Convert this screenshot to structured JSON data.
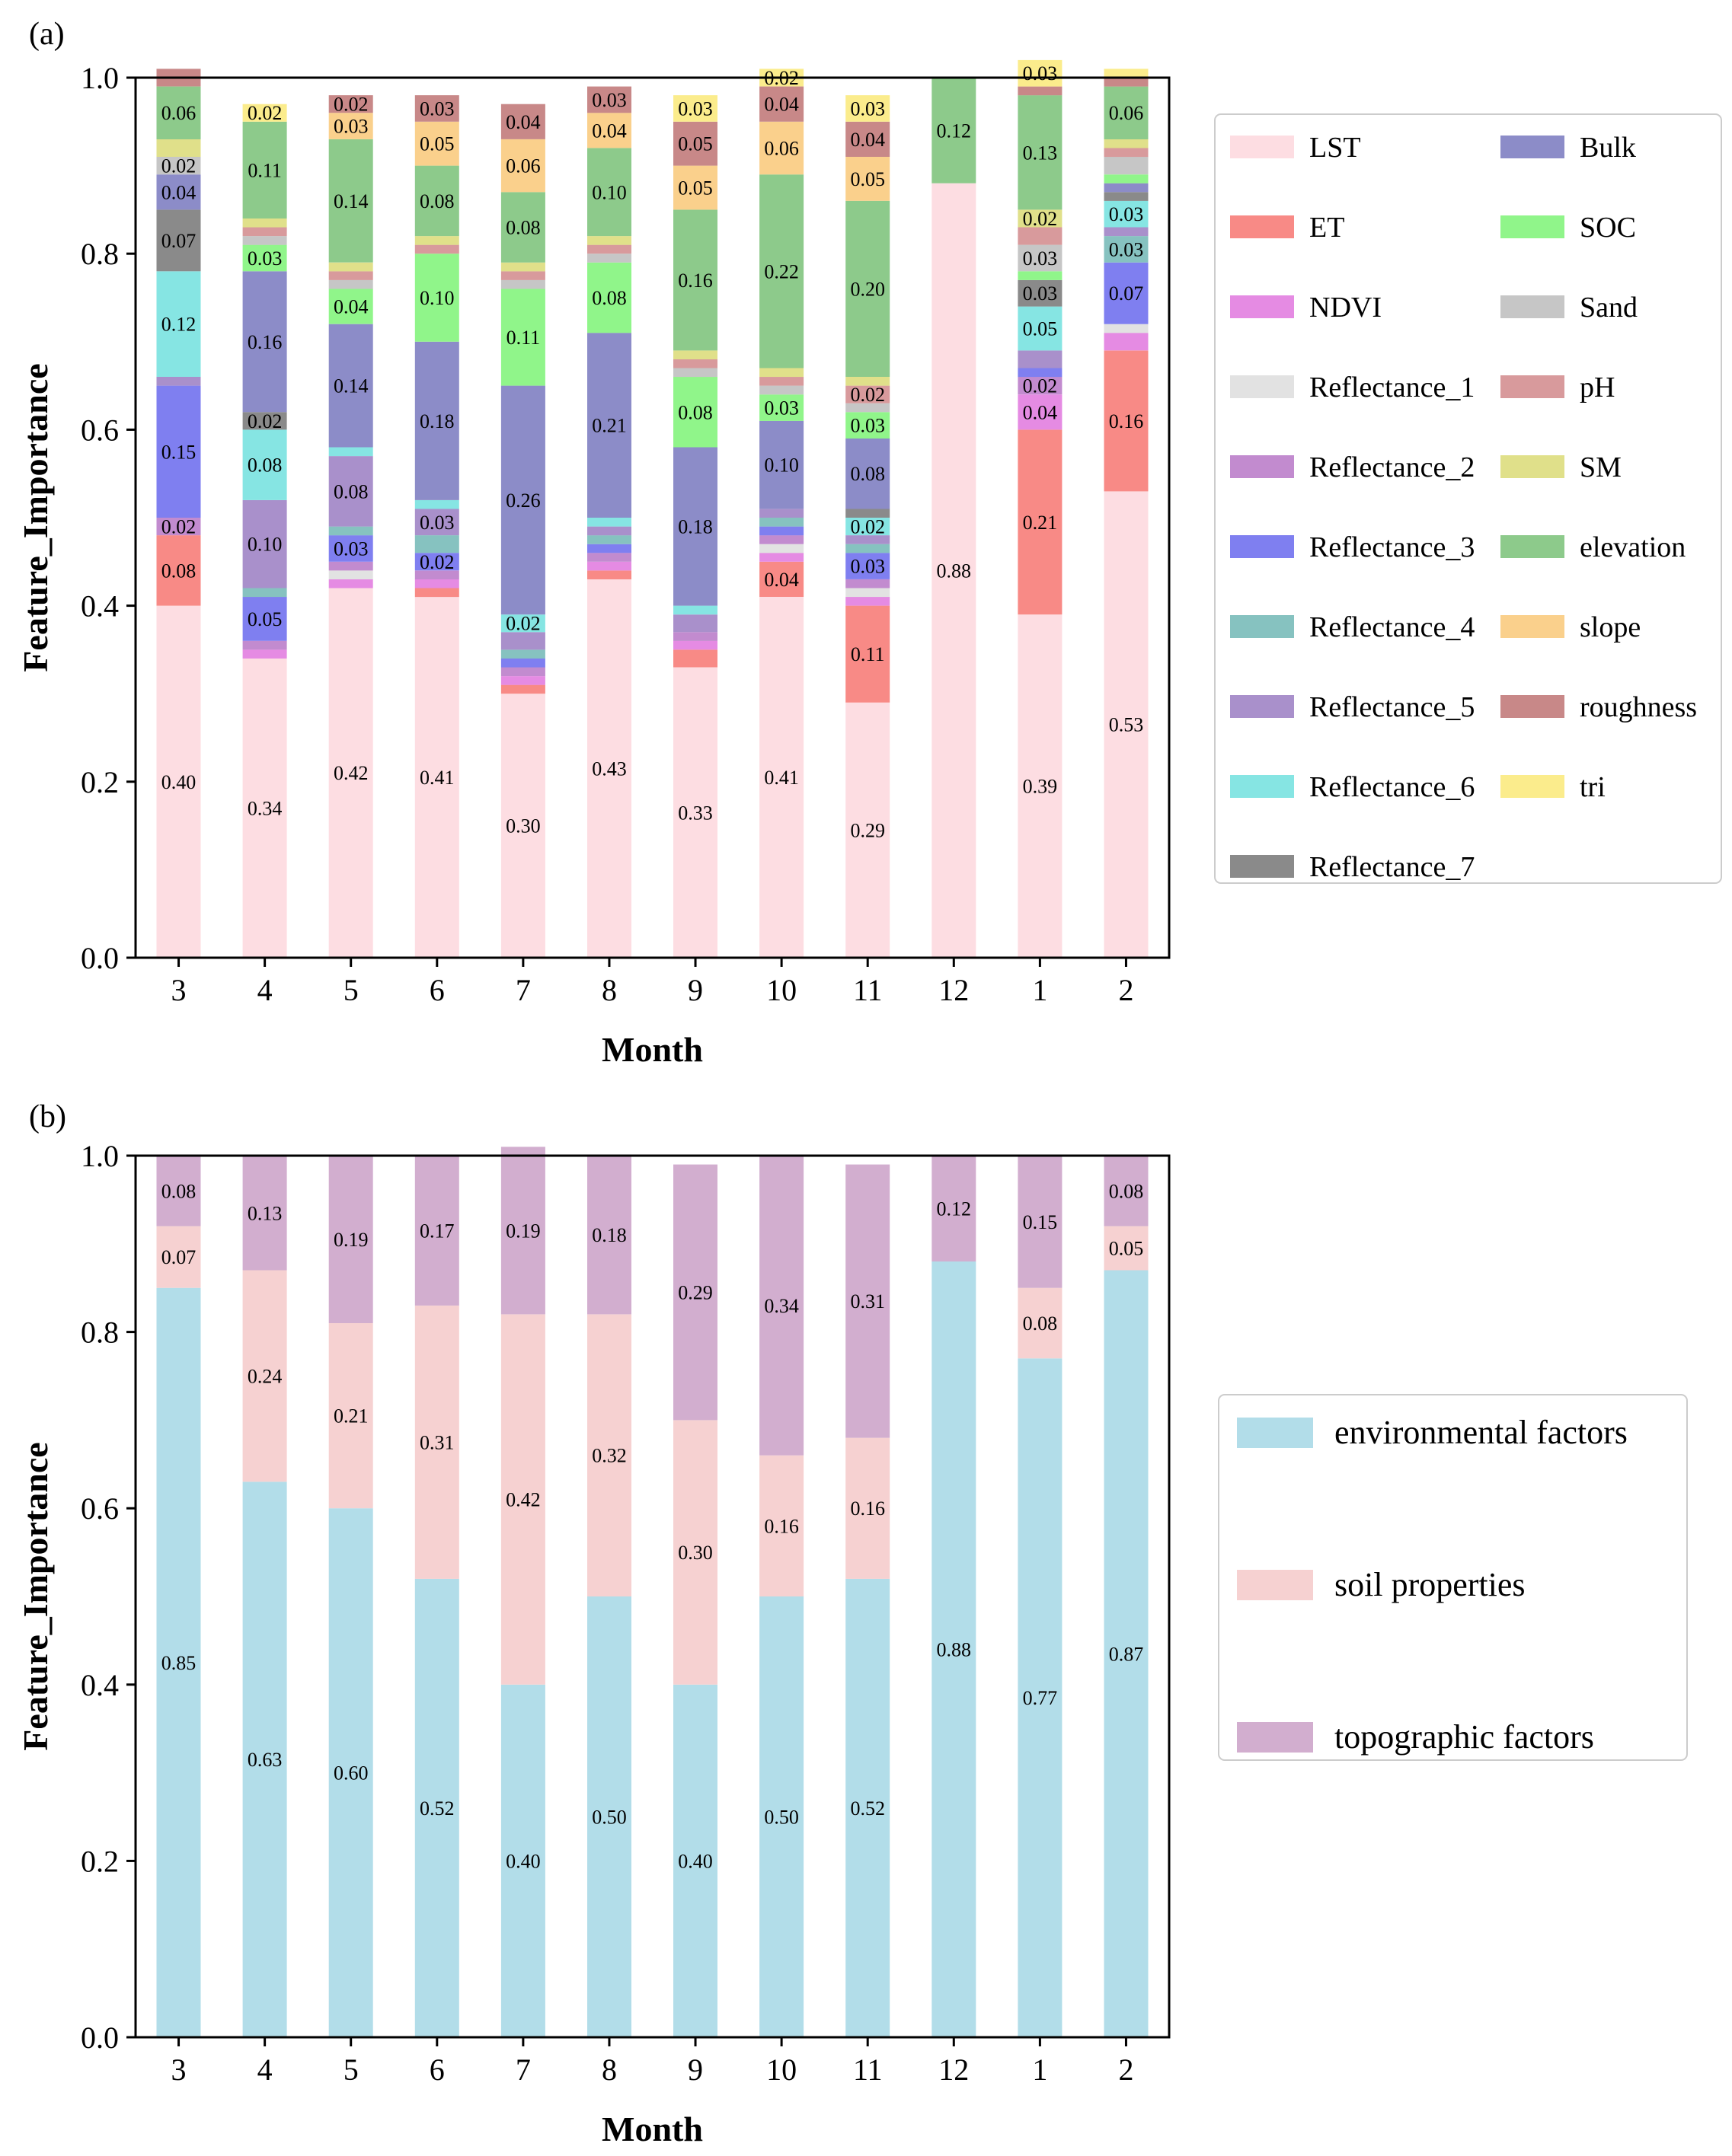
{
  "chart_data": [
    {
      "panel_label": "(a)",
      "type": "bar",
      "stacked": true,
      "xlabel": "Month",
      "ylabel": "Feature_Importance",
      "ylim": [
        0,
        1.0
      ],
      "yticks": [
        "0.0",
        "0.2",
        "0.4",
        "0.6",
        "0.8",
        "1.0"
      ],
      "categories": [
        "3",
        "4",
        "5",
        "6",
        "7",
        "8",
        "9",
        "10",
        "11",
        "12",
        "1",
        "2"
      ],
      "series": [
        {
          "name": "LST",
          "color": "#fddde2",
          "values": [
            0.4,
            0.34,
            0.42,
            0.41,
            0.3,
            0.43,
            0.33,
            0.41,
            0.29,
            0.88,
            0.39,
            0.53
          ]
        },
        {
          "name": "ET",
          "color": "#f88a86",
          "values": [
            0.08,
            0,
            0,
            0.01,
            0.01,
            0.01,
            0.02,
            0.04,
            0.11,
            0,
            0.21,
            0.16
          ]
        },
        {
          "name": "NDVI",
          "color": "#e58be3",
          "values": [
            0,
            0.01,
            0.01,
            0.01,
            0.01,
            0.01,
            0.01,
            0.01,
            0.01,
            0,
            0.04,
            0.02
          ]
        },
        {
          "name": "Reflectance_1",
          "color": "#e2e2e2",
          "values": [
            0,
            0,
            0.01,
            0,
            0,
            0,
            0,
            0.01,
            0.01,
            0,
            0,
            0.01
          ]
        },
        {
          "name": "Reflectance_2",
          "color": "#c28bcf",
          "values": [
            0.02,
            0.01,
            0.01,
            0.01,
            0.01,
            0.01,
            0.01,
            0.01,
            0.01,
            0,
            0.02,
            0
          ]
        },
        {
          "name": "Reflectance_3",
          "color": "#7f7ff0",
          "values": [
            0.15,
            0.05,
            0.03,
            0.02,
            0.01,
            0.01,
            0,
            0.01,
            0.03,
            0,
            0.01,
            0.07
          ]
        },
        {
          "name": "Reflectance_4",
          "color": "#86c2c0",
          "values": [
            0,
            0.01,
            0.01,
            0.02,
            0.01,
            0.01,
            0,
            0.01,
            0.01,
            0,
            0,
            0.03
          ]
        },
        {
          "name": "Reflectance_5",
          "color": "#a990cb",
          "values": [
            0.01,
            0.1,
            0.08,
            0.03,
            0.02,
            0.01,
            0.02,
            0.01,
            0.01,
            0,
            0.02,
            0.01
          ]
        },
        {
          "name": "Reflectance_6",
          "color": "#86e5e3",
          "values": [
            0.12,
            0.08,
            0.01,
            0.01,
            0.02,
            0.01,
            0.01,
            0,
            0.02,
            0,
            0.05,
            0.03
          ]
        },
        {
          "name": "Reflectance_7",
          "color": "#8a8a8a",
          "values": [
            0.07,
            0.02,
            0,
            0,
            0,
            0,
            0,
            0,
            0.01,
            0,
            0.03,
            0.01
          ]
        },
        {
          "name": "Bulk",
          "color": "#8c8cc8",
          "values": [
            0.04,
            0.16,
            0.14,
            0.18,
            0.26,
            0.21,
            0.18,
            0.1,
            0.08,
            0,
            0,
            0.01
          ]
        },
        {
          "name": "SOC",
          "color": "#90f58a",
          "values": [
            0,
            0.03,
            0.04,
            0.1,
            0.11,
            0.08,
            0.08,
            0.03,
            0.03,
            0,
            0.01,
            0.01
          ]
        },
        {
          "name": "Sand",
          "color": "#c6c6c6",
          "values": [
            0.02,
            0.01,
            0.01,
            0,
            0.01,
            0.01,
            0.01,
            0.01,
            0.01,
            0,
            0.03,
            0.02
          ]
        },
        {
          "name": "pH",
          "color": "#d89a9c",
          "values": [
            0,
            0.01,
            0.01,
            0.01,
            0.01,
            0.01,
            0.01,
            0.01,
            0.02,
            0,
            0.02,
            0.01
          ]
        },
        {
          "name": "SM",
          "color": "#e0e08a",
          "values": [
            0.02,
            0.01,
            0.01,
            0.01,
            0.01,
            0.01,
            0.01,
            0.01,
            0.01,
            0,
            0.02,
            0.01
          ]
        },
        {
          "name": "elevation",
          "color": "#8dca8b",
          "values": [
            0.06,
            0.11,
            0.14,
            0.08,
            0.08,
            0.1,
            0.16,
            0.22,
            0.2,
            0.12,
            0.13,
            0.06
          ]
        },
        {
          "name": "slope",
          "color": "#fad08c",
          "values": [
            0,
            0,
            0.03,
            0.05,
            0.06,
            0.04,
            0.05,
            0.06,
            0.05,
            0,
            0,
            0
          ]
        },
        {
          "name": "roughness",
          "color": "#c88888",
          "values": [
            0.02,
            0,
            0.02,
            0.03,
            0.04,
            0.03,
            0.05,
            0.04,
            0.04,
            0,
            0.01,
            0.01
          ]
        },
        {
          "name": "tri",
          "color": "#fbec8c",
          "values": [
            0,
            0.02,
            0,
            0,
            0,
            0,
            0.03,
            0.02,
            0.03,
            0,
            0.03,
            0.01
          ]
        }
      ],
      "data_labels": [
        [
          "0.40",
          "0.08",
          "",
          "",
          "0.02",
          "0.15",
          "",
          "",
          "0.12",
          "0.07",
          "0.04",
          "",
          "0.02",
          "",
          "",
          "0.06",
          "",
          "",
          ""
        ],
        [
          "0.34",
          "",
          "",
          "",
          "",
          "0.05",
          "",
          "0.10",
          "0.08",
          "0.02",
          "0.16",
          "0.03",
          "",
          "",
          "",
          "0.11",
          "",
          "",
          "0.02"
        ],
        [
          "0.42",
          "",
          "",
          "",
          "",
          "0.03",
          "",
          "0.08",
          "",
          "",
          "0.14",
          "0.04",
          "",
          "",
          "",
          "0.14",
          "0.03",
          "0.02",
          ""
        ],
        [
          "0.41",
          "",
          "",
          "",
          "",
          "0.02",
          "",
          "0.03",
          "",
          "",
          "0.18",
          "0.10",
          "",
          "",
          "",
          "0.08",
          "0.05",
          "0.03",
          ""
        ],
        [
          "0.30",
          "",
          "",
          "",
          "",
          "",
          "",
          "",
          "0.02",
          "",
          "0.26",
          "0.11",
          "",
          "",
          "",
          "0.08",
          "0.06",
          "0.04",
          ""
        ],
        [
          "0.43",
          "",
          "",
          "",
          "",
          "",
          "",
          "",
          "",
          "",
          "0.21",
          "0.08",
          "",
          "",
          "",
          "0.10",
          "0.04",
          "0.03",
          ""
        ],
        [
          "0.33",
          "",
          "",
          "",
          "",
          "",
          "",
          "",
          "",
          "",
          "0.18",
          "0.08",
          "",
          "",
          "",
          "0.16",
          "0.05",
          "0.05",
          "0.03"
        ],
        [
          "0.41",
          "0.04",
          "",
          "",
          "",
          "",
          "",
          "",
          "",
          "",
          "0.10",
          "0.03",
          "",
          "",
          "",
          "0.22",
          "0.06",
          "0.04",
          "0.02"
        ],
        [
          "0.29",
          "0.11",
          "",
          "",
          "",
          "0.03",
          "",
          "",
          "0.02",
          "",
          "0.08",
          "0.03",
          "",
          "0.02",
          "",
          "0.20",
          "0.05",
          "0.04",
          "0.03"
        ],
        [
          "0.88",
          "",
          "",
          "",
          "",
          "",
          "",
          "",
          "",
          "",
          "",
          "",
          "",
          "",
          "",
          "0.12",
          "",
          "",
          ""
        ],
        [
          "0.39",
          "0.21",
          "0.04",
          "",
          "0.02",
          "",
          "",
          "",
          "0.05",
          "0.03",
          "",
          "",
          "0.03",
          "",
          "0.02",
          "0.13",
          "",
          "",
          "0.03"
        ],
        [
          "0.53",
          "0.16",
          "",
          "",
          "",
          "0.07",
          "0.03",
          "",
          "0.03",
          "",
          "",
          "",
          "",
          "",
          "",
          "0.06",
          "",
          "",
          ""
        ]
      ],
      "legend_position": "right"
    },
    {
      "panel_label": "(b)",
      "type": "bar",
      "stacked": true,
      "xlabel": "Month",
      "ylabel": "Feature_Importance",
      "ylim": [
        0,
        1.0
      ],
      "yticks": [
        "0.0",
        "0.2",
        "0.4",
        "0.6",
        "0.8",
        "1.0"
      ],
      "categories": [
        "3",
        "4",
        "5",
        "6",
        "7",
        "8",
        "9",
        "10",
        "11",
        "12",
        "1",
        "2"
      ],
      "series": [
        {
          "name": "environmental factors",
          "color": "#b2dde9",
          "values": [
            0.85,
            0.63,
            0.6,
            0.52,
            0.4,
            0.5,
            0.4,
            0.5,
            0.52,
            0.88,
            0.77,
            0.87
          ]
        },
        {
          "name": "soil properties",
          "color": "#f6d1d1",
          "values": [
            0.07,
            0.24,
            0.21,
            0.31,
            0.42,
            0.32,
            0.3,
            0.16,
            0.16,
            0,
            0.08,
            0.05
          ]
        },
        {
          "name": "topographic factors",
          "color": "#d2aecf",
          "values": [
            0.08,
            0.13,
            0.19,
            0.17,
            0.19,
            0.18,
            0.29,
            0.34,
            0.31,
            0.12,
            0.15,
            0.08
          ]
        }
      ],
      "data_labels": [
        [
          "0.85",
          "0.07",
          "0.08"
        ],
        [
          "0.63",
          "0.24",
          "0.13"
        ],
        [
          "0.60",
          "0.21",
          "0.19"
        ],
        [
          "0.52",
          "0.31",
          "0.17"
        ],
        [
          "0.40",
          "0.42",
          "0.19"
        ],
        [
          "0.50",
          "0.32",
          "0.18"
        ],
        [
          "0.40",
          "0.30",
          "0.29"
        ],
        [
          "0.50",
          "0.16",
          "0.34"
        ],
        [
          "0.52",
          "0.16",
          "0.31"
        ],
        [
          "0.88",
          "",
          "0.12"
        ],
        [
          "0.77",
          "0.08",
          "0.15"
        ],
        [
          "0.87",
          "0.05",
          "0.08"
        ]
      ],
      "legend_position": "right"
    }
  ]
}
